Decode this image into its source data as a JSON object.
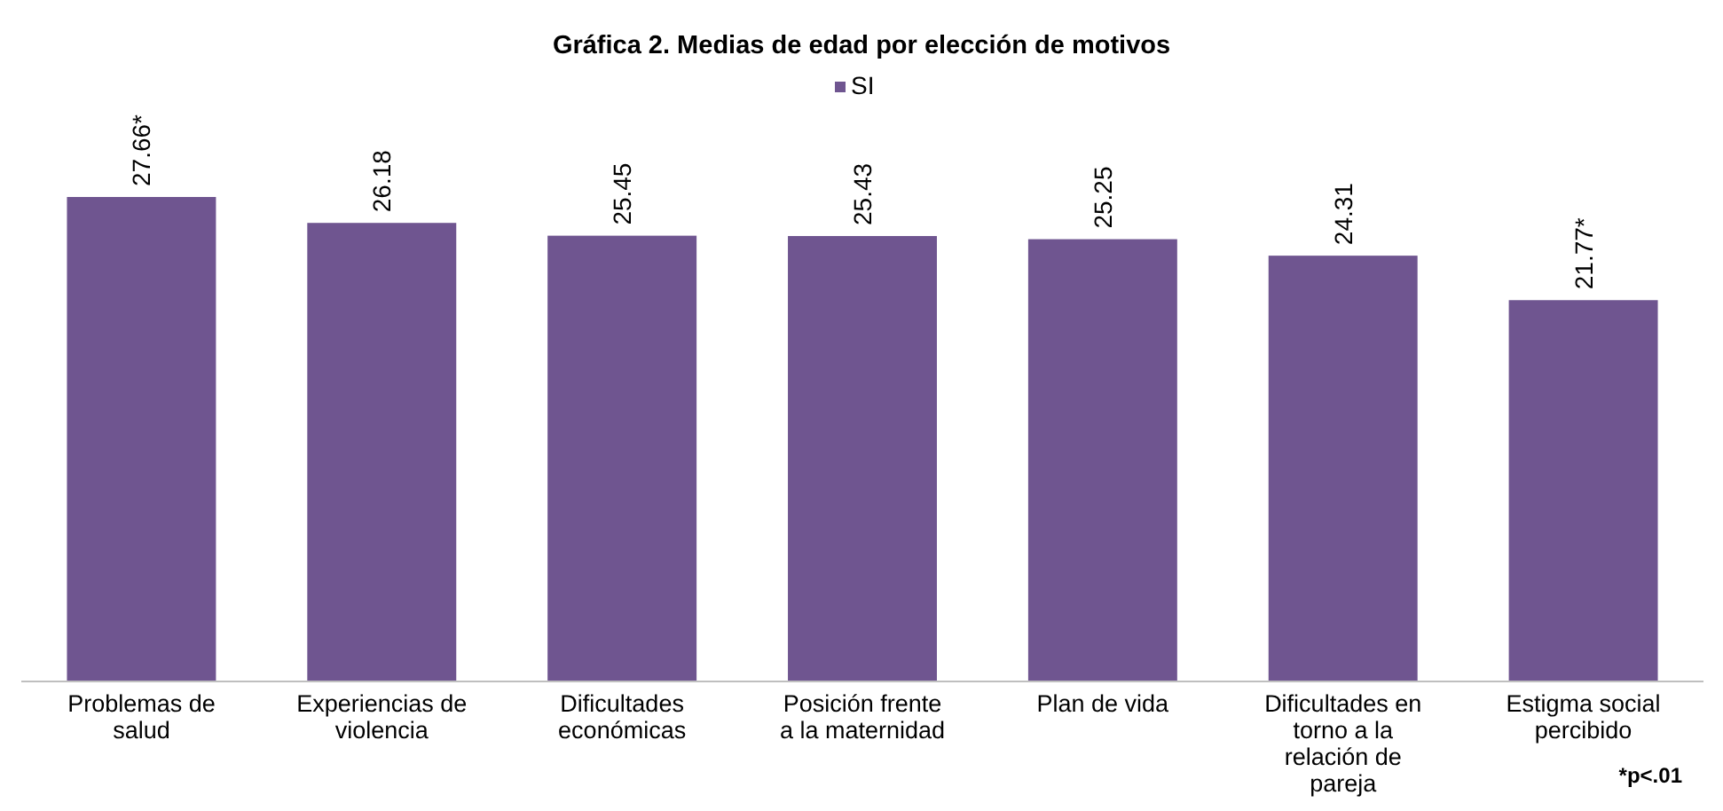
{
  "chart_data": {
    "type": "bar",
    "title": "Gráfica 2. Medias de edad por elección de motivos",
    "categories": [
      "Problemas de salud",
      "Experiencias de violencia",
      "Dificultades económicas",
      "Posición frente a la maternidad",
      "Plan de vida",
      "Dificultades en torno a la relación de pareja",
      "Estigma social percibido"
    ],
    "series": [
      {
        "name": "SI",
        "color": "#6f5590",
        "values": [
          27.66,
          26.18,
          25.45,
          25.43,
          25.25,
          24.31,
          21.77
        ],
        "value_labels": [
          "27.66*",
          "26.18",
          "25.45",
          "25.43",
          "25.25",
          "24.31",
          "21.77*"
        ]
      }
    ],
    "legend": "top",
    "annotations": [
      "*p<.01"
    ]
  }
}
